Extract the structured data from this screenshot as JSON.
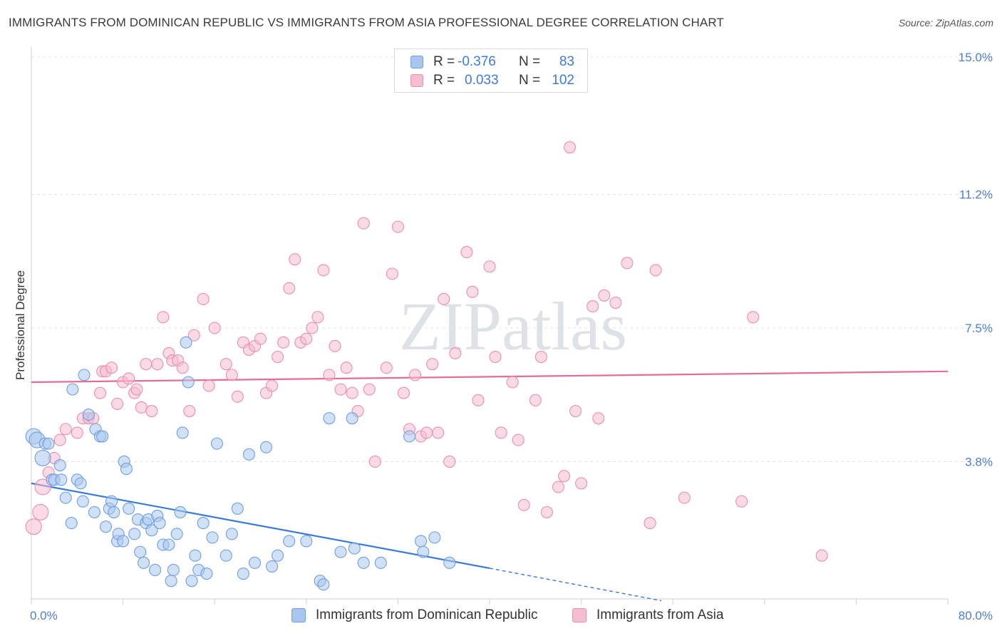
{
  "header": {
    "title": "IMMIGRANTS FROM DOMINICAN REPUBLIC VS IMMIGRANTS FROM ASIA PROFESSIONAL DEGREE CORRELATION CHART",
    "source": "Source: ZipAtlas.com"
  },
  "watermark": "ZIPatlas",
  "legend": {
    "rows": [
      {
        "r_label": "R =",
        "r_value": "-0.376",
        "n_label": "N =",
        "n_value": "83",
        "color": "#a9c7ee",
        "border": "#6f9fe0"
      },
      {
        "r_label": "R =",
        "r_value": "0.033",
        "n_label": "N =",
        "n_value": "102",
        "color": "#f6bcd0",
        "border": "#e98fb0"
      }
    ]
  },
  "bottom_legend": [
    {
      "label": "Immigrants from Dominican Republic",
      "color": "#a9c7ee",
      "border": "#6f9fe0"
    },
    {
      "label": "Immigrants from Asia",
      "color": "#f6bcd0",
      "border": "#e98fb0"
    }
  ],
  "chart_data": {
    "type": "scatter",
    "title": "IMMIGRANTS FROM DOMINICAN REPUBLIC VS IMMIGRANTS FROM ASIA PROFESSIONAL DEGREE CORRELATION CHART",
    "xlabel": "",
    "ylabel": "Professional Degree",
    "xlim": [
      0,
      80
    ],
    "ylim": [
      0,
      15.0
    ],
    "x_tick_labels": [
      "0.0%",
      "80.0%"
    ],
    "y_tick_labels": [
      "3.8%",
      "7.5%",
      "11.2%",
      "15.0%"
    ],
    "y_ticks": [
      3.8,
      7.5,
      11.2,
      15.0
    ],
    "grid": true,
    "series": [
      {
        "name": "Immigrants from Dominican Republic",
        "color": "#6f9fe0",
        "fill": "#a9c7ee",
        "trend": {
          "x": [
            0,
            40
          ],
          "y": [
            3.2,
            0.85
          ],
          "dashed_to": [
            55,
            -0.05
          ]
        },
        "points": [
          [
            0.2,
            4.5
          ],
          [
            0.5,
            4.4
          ],
          [
            1.0,
            3.9
          ],
          [
            1.2,
            4.3
          ],
          [
            1.5,
            4.3
          ],
          [
            1.8,
            3.3
          ],
          [
            2.0,
            3.3
          ],
          [
            2.5,
            3.7
          ],
          [
            2.6,
            3.3
          ],
          [
            3.0,
            2.8
          ],
          [
            3.5,
            2.1
          ],
          [
            3.6,
            5.8
          ],
          [
            4.0,
            3.3
          ],
          [
            4.3,
            3.2
          ],
          [
            4.5,
            2.7
          ],
          [
            4.6,
            6.2
          ],
          [
            5.0,
            5.1
          ],
          [
            5.5,
            2.4
          ],
          [
            5.6,
            4.7
          ],
          [
            6.0,
            4.5
          ],
          [
            6.2,
            4.5
          ],
          [
            6.5,
            2.0
          ],
          [
            6.8,
            2.5
          ],
          [
            7.0,
            2.7
          ],
          [
            7.2,
            2.4
          ],
          [
            7.5,
            1.6
          ],
          [
            7.6,
            1.8
          ],
          [
            8.0,
            1.6
          ],
          [
            8.1,
            3.8
          ],
          [
            8.3,
            3.6
          ],
          [
            8.5,
            2.5
          ],
          [
            9.0,
            1.8
          ],
          [
            9.3,
            2.2
          ],
          [
            9.5,
            1.3
          ],
          [
            9.8,
            1.0
          ],
          [
            10.0,
            2.1
          ],
          [
            10.2,
            2.2
          ],
          [
            10.5,
            1.9
          ],
          [
            10.8,
            0.8
          ],
          [
            11.0,
            2.3
          ],
          [
            11.2,
            2.1
          ],
          [
            11.5,
            1.5
          ],
          [
            12.0,
            1.5
          ],
          [
            12.2,
            0.5
          ],
          [
            12.4,
            0.8
          ],
          [
            12.7,
            1.8
          ],
          [
            13.0,
            2.4
          ],
          [
            13.2,
            4.6
          ],
          [
            13.5,
            7.1
          ],
          [
            13.7,
            6.0
          ],
          [
            14.0,
            0.5
          ],
          [
            14.3,
            1.2
          ],
          [
            14.6,
            0.8
          ],
          [
            15.0,
            2.1
          ],
          [
            15.3,
            0.7
          ],
          [
            15.8,
            1.7
          ],
          [
            16.2,
            4.3
          ],
          [
            17.0,
            1.2
          ],
          [
            17.5,
            1.8
          ],
          [
            18.0,
            2.5
          ],
          [
            18.5,
            0.7
          ],
          [
            19.0,
            4.0
          ],
          [
            19.5,
            1.0
          ],
          [
            20.5,
            4.2
          ],
          [
            21.0,
            0.9
          ],
          [
            21.5,
            1.2
          ],
          [
            22.5,
            1.6
          ],
          [
            24.0,
            1.6
          ],
          [
            25.2,
            0.5
          ],
          [
            25.5,
            0.4
          ],
          [
            26.0,
            5.0
          ],
          [
            27.0,
            1.3
          ],
          [
            28.0,
            5.0
          ],
          [
            28.2,
            1.4
          ],
          [
            29.0,
            1.0
          ],
          [
            30.5,
            1.0
          ],
          [
            33.0,
            4.5
          ],
          [
            34.0,
            1.6
          ],
          [
            34.2,
            1.3
          ],
          [
            35.2,
            1.7
          ],
          [
            36.5,
            1.0
          ]
        ]
      },
      {
        "name": "Immigrants from Asia",
        "color": "#e98fb0",
        "fill": "#f6bcd0",
        "trend": {
          "x": [
            0,
            80
          ],
          "y": [
            6.0,
            6.3
          ]
        },
        "points": [
          [
            0.2,
            2.0
          ],
          [
            0.8,
            2.4
          ],
          [
            1.0,
            3.1
          ],
          [
            1.5,
            3.5
          ],
          [
            2.0,
            3.9
          ],
          [
            2.5,
            4.4
          ],
          [
            3.0,
            4.7
          ],
          [
            4.0,
            4.6
          ],
          [
            4.5,
            5.0
          ],
          [
            5.0,
            5.0
          ],
          [
            5.4,
            5.0
          ],
          [
            6.0,
            5.7
          ],
          [
            6.2,
            6.3
          ],
          [
            6.5,
            6.3
          ],
          [
            7.0,
            6.4
          ],
          [
            7.5,
            5.4
          ],
          [
            8.0,
            6.0
          ],
          [
            8.5,
            6.1
          ],
          [
            9.0,
            5.7
          ],
          [
            9.2,
            5.8
          ],
          [
            9.6,
            5.3
          ],
          [
            10.0,
            6.5
          ],
          [
            10.5,
            5.2
          ],
          [
            11.0,
            6.5
          ],
          [
            11.5,
            7.8
          ],
          [
            12.0,
            6.8
          ],
          [
            12.3,
            6.6
          ],
          [
            12.8,
            6.6
          ],
          [
            13.2,
            6.4
          ],
          [
            13.8,
            5.2
          ],
          [
            14.2,
            7.3
          ],
          [
            15.0,
            8.3
          ],
          [
            15.5,
            5.9
          ],
          [
            16.0,
            7.5
          ],
          [
            17.0,
            6.5
          ],
          [
            17.5,
            6.2
          ],
          [
            18.0,
            5.6
          ],
          [
            18.5,
            7.1
          ],
          [
            19.0,
            6.9
          ],
          [
            19.5,
            7.0
          ],
          [
            20.0,
            7.2
          ],
          [
            20.5,
            5.7
          ],
          [
            21.0,
            5.9
          ],
          [
            21.5,
            6.7
          ],
          [
            22.0,
            7.1
          ],
          [
            22.5,
            8.6
          ],
          [
            23.0,
            9.4
          ],
          [
            23.5,
            7.1
          ],
          [
            24.0,
            7.2
          ],
          [
            24.5,
            7.5
          ],
          [
            25.0,
            7.8
          ],
          [
            25.5,
            9.1
          ],
          [
            26.0,
            6.2
          ],
          [
            26.5,
            7.0
          ],
          [
            27.0,
            5.8
          ],
          [
            27.5,
            6.4
          ],
          [
            28.0,
            5.7
          ],
          [
            28.5,
            5.2
          ],
          [
            29.0,
            10.4
          ],
          [
            29.5,
            5.8
          ],
          [
            30.0,
            3.8
          ],
          [
            31.0,
            6.4
          ],
          [
            31.5,
            9.0
          ],
          [
            32.0,
            10.3
          ],
          [
            32.5,
            5.7
          ],
          [
            33.0,
            4.7
          ],
          [
            33.5,
            6.2
          ],
          [
            34.0,
            4.5
          ],
          [
            34.5,
            4.6
          ],
          [
            35.0,
            6.5
          ],
          [
            35.5,
            4.6
          ],
          [
            36.0,
            8.3
          ],
          [
            36.5,
            3.8
          ],
          [
            37.0,
            6.8
          ],
          [
            38.0,
            9.6
          ],
          [
            38.5,
            8.5
          ],
          [
            39.0,
            5.5
          ],
          [
            40.0,
            9.2
          ],
          [
            40.5,
            6.7
          ],
          [
            41.0,
            4.6
          ],
          [
            42.0,
            6.0
          ],
          [
            42.5,
            4.4
          ],
          [
            43.0,
            2.6
          ],
          [
            44.0,
            5.5
          ],
          [
            44.5,
            6.7
          ],
          [
            45.0,
            2.4
          ],
          [
            46.0,
            3.1
          ],
          [
            46.5,
            3.4
          ],
          [
            47.0,
            12.5
          ],
          [
            47.5,
            5.2
          ],
          [
            48.0,
            3.2
          ],
          [
            49.0,
            8.1
          ],
          [
            49.5,
            5.0
          ],
          [
            50.0,
            8.4
          ],
          [
            51.0,
            8.2
          ],
          [
            52.0,
            9.3
          ],
          [
            54.0,
            2.1
          ],
          [
            54.5,
            9.1
          ],
          [
            57.0,
            2.8
          ],
          [
            62.0,
            2.7
          ],
          [
            63.0,
            7.8
          ],
          [
            69.0,
            1.2
          ]
        ]
      }
    ]
  }
}
